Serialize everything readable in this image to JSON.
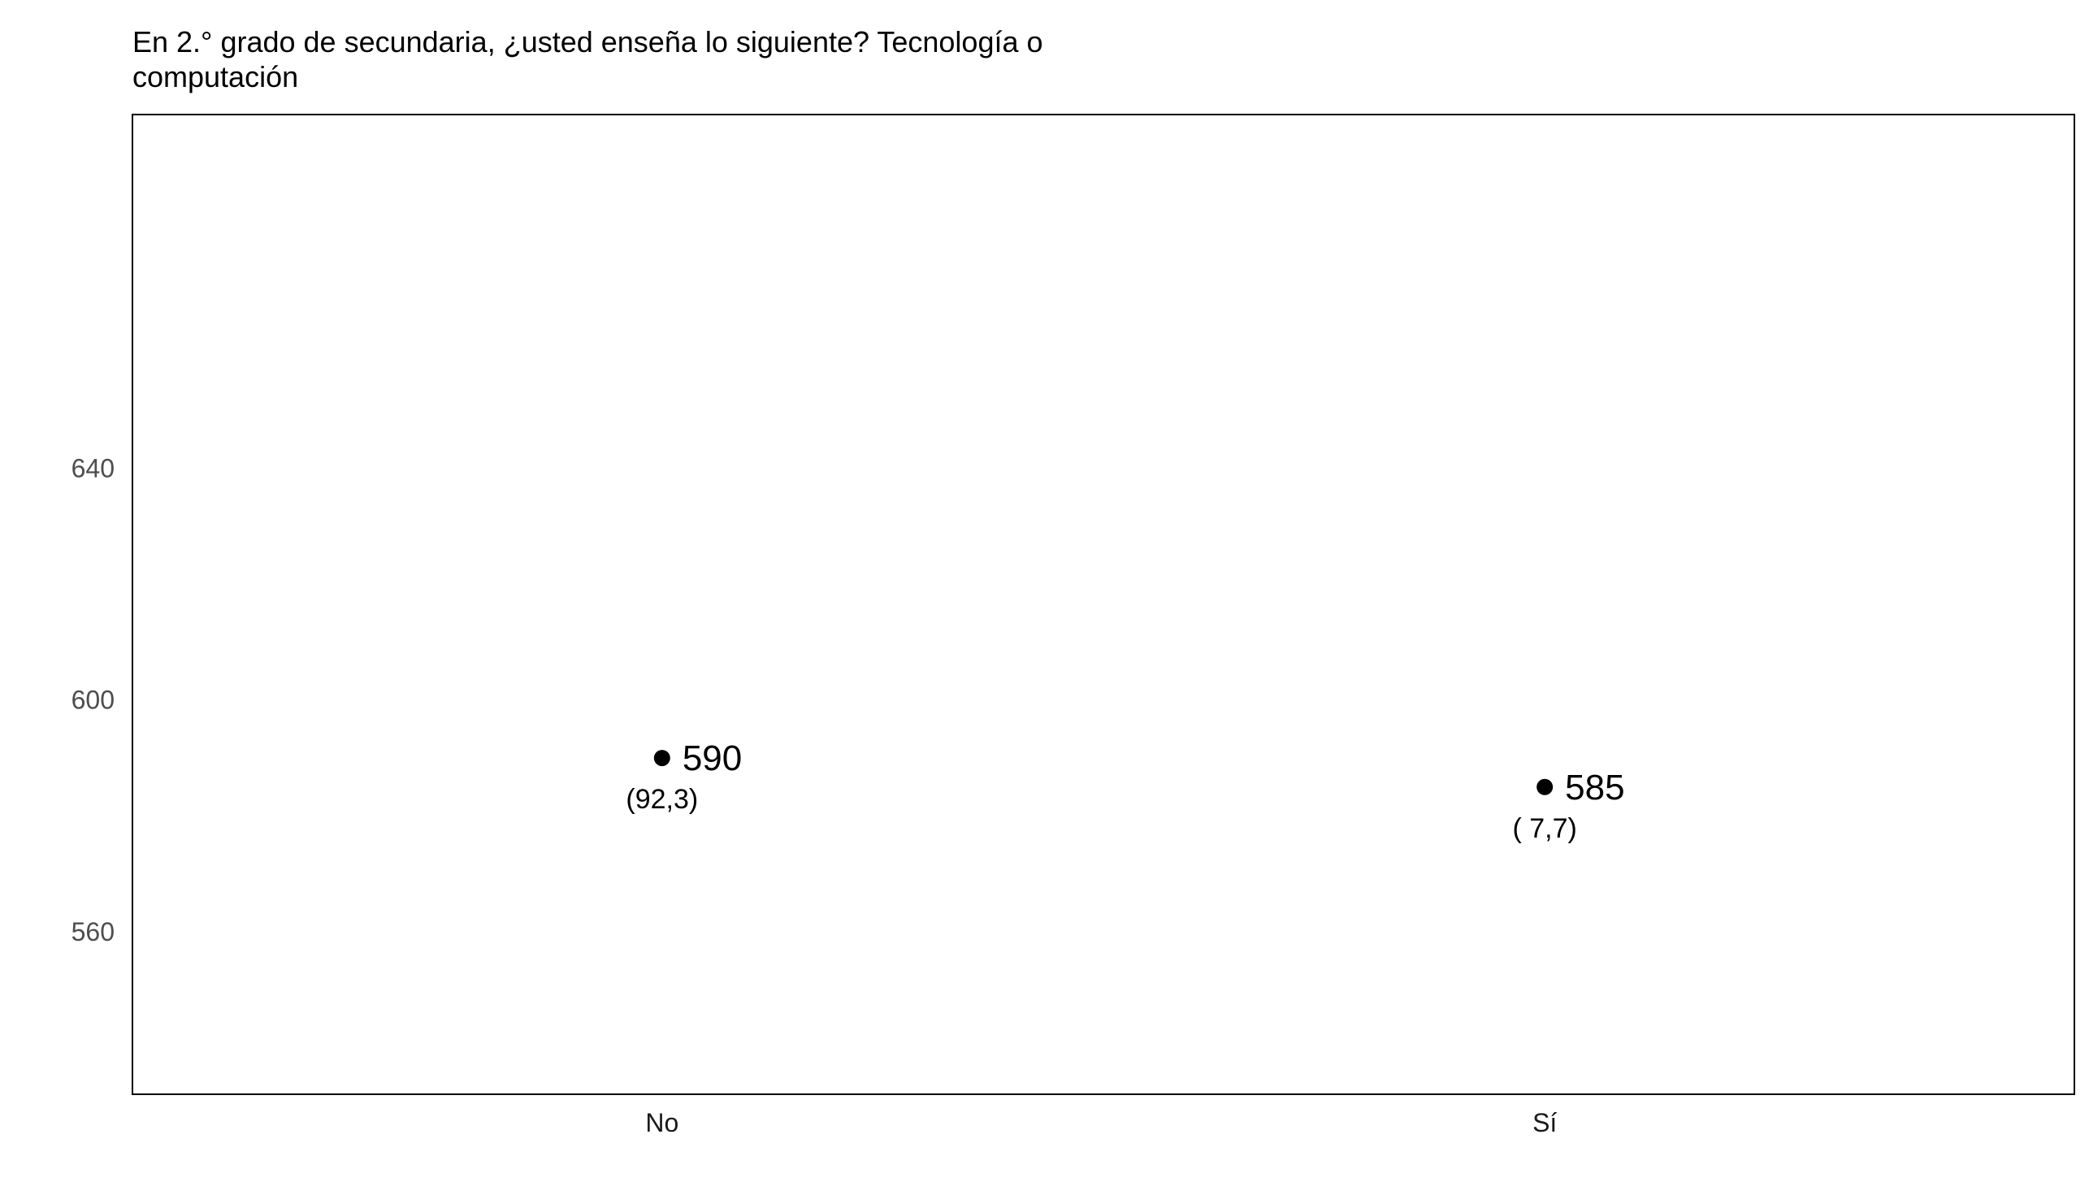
{
  "chart_data": {
    "type": "scatter",
    "title": "En 2.° grado de secundaria, ¿usted enseña lo siguiente? Tecnología o computación",
    "xlabel": "",
    "ylabel": "",
    "categories": [
      "No",
      "Sí"
    ],
    "values": [
      590,
      585
    ],
    "point_labels": [
      "590",
      "585"
    ],
    "percent_labels": [
      "(92,3)",
      "( 7,7)"
    ],
    "ylim": [
      532,
      701
    ],
    "yticks": [
      560,
      600,
      640
    ],
    "ytick_labels": [
      "560",
      "600",
      "640"
    ],
    "grid": false,
    "legend": "none",
    "point_color": "#000000",
    "frame_color": "#000000"
  }
}
